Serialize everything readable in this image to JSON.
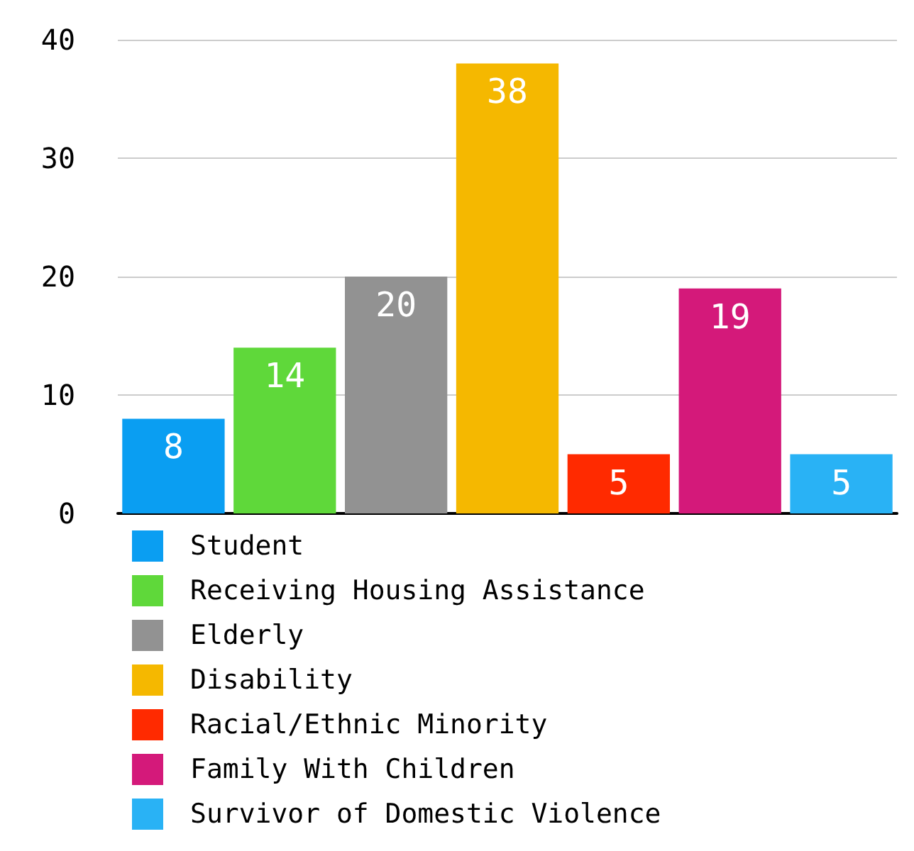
{
  "chart_data": {
    "type": "bar",
    "categories": [
      null,
      null,
      null,
      null,
      null,
      null,
      null
    ],
    "series": [
      {
        "name": "Student",
        "color": "#0a9ef2",
        "values": [
          8,
          null,
          null,
          null,
          null,
          null,
          null
        ]
      },
      {
        "name": "Receiving Housing Assistance",
        "color": "#5fd83a",
        "values": [
          null,
          14,
          null,
          null,
          null,
          null,
          null
        ]
      },
      {
        "name": "Elderly",
        "color": "#929292",
        "values": [
          null,
          null,
          20,
          null,
          null,
          null,
          null
        ]
      },
      {
        "name": "Disability",
        "color": "#f5b800",
        "values": [
          null,
          null,
          null,
          38,
          null,
          null,
          null
        ]
      },
      {
        "name": "Racial/Ethnic Minority",
        "color": "#ff2a00",
        "values": [
          null,
          null,
          null,
          null,
          5,
          null,
          null
        ]
      },
      {
        "name": "Family With Children",
        "color": "#d4197a",
        "values": [
          null,
          null,
          null,
          null,
          null,
          19,
          null
        ]
      },
      {
        "name": "Survivor of Domestic Violence",
        "color": "#29b2f5",
        "values": [
          null,
          null,
          null,
          null,
          null,
          null,
          5
        ]
      }
    ],
    "ylim": [
      0,
      40
    ],
    "yticks": [
      0,
      10,
      20,
      30,
      40
    ],
    "grid": "y",
    "legend": "bottom",
    "data_labels": true
  }
}
